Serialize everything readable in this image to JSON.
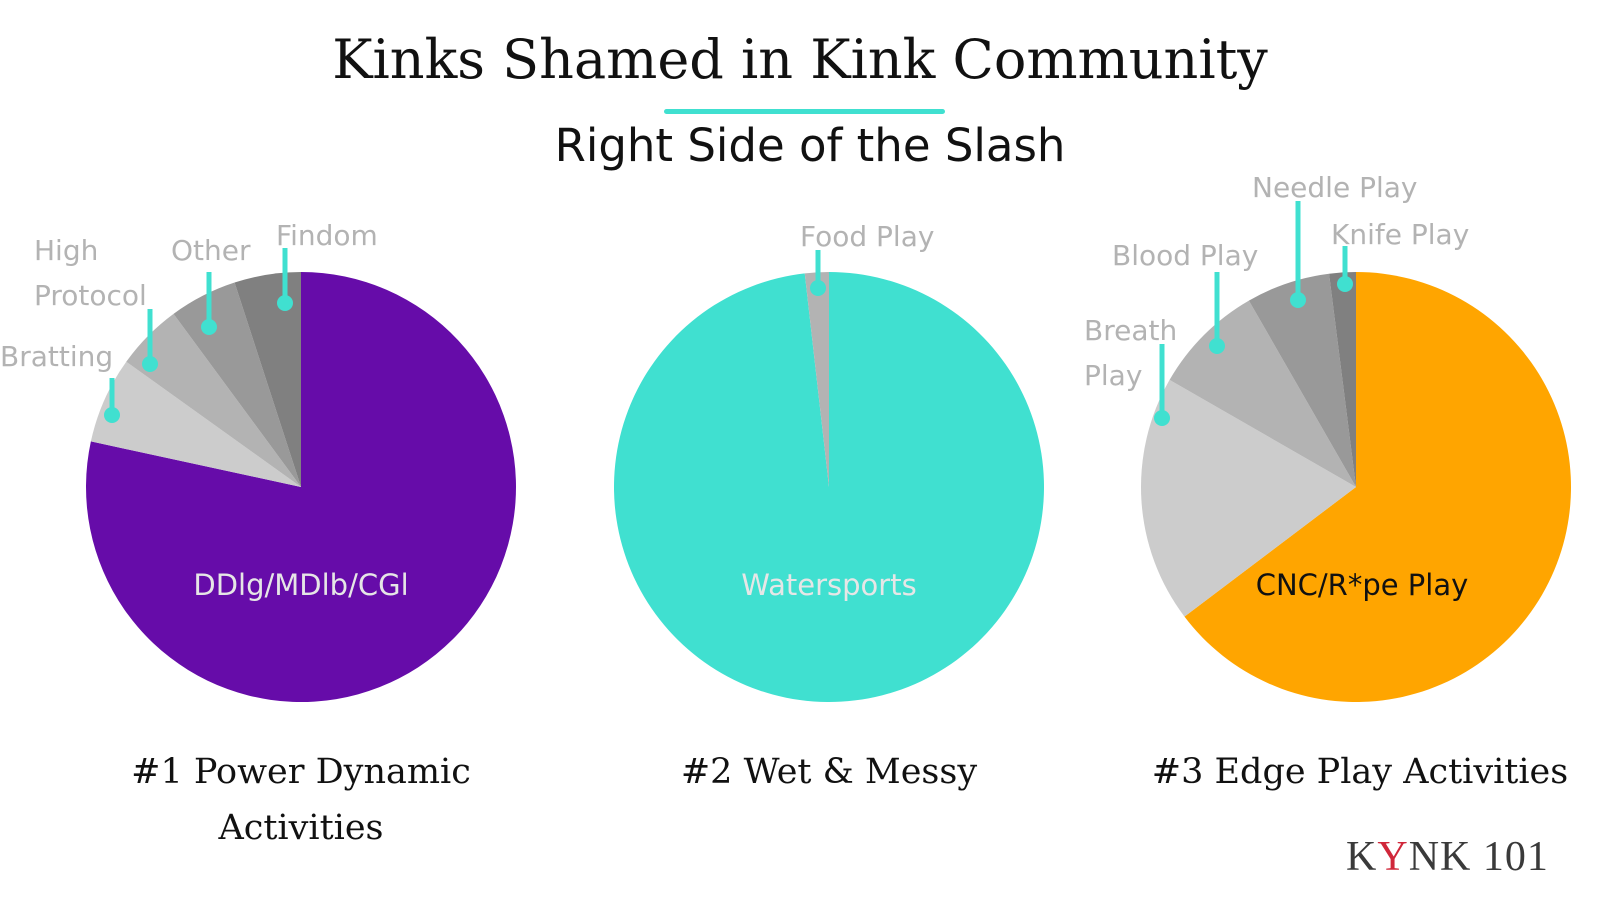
{
  "header": {
    "title": "Kinks Shamed in Kink Community",
    "subtitle": "Right Side of the Slash",
    "accent_color": "#40e0d0"
  },
  "logo": {
    "prefix": "K",
    "highlight": "Y",
    "suffix": "NK 101",
    "highlight_color": "#d0273a"
  },
  "chart_data": [
    {
      "type": "pie",
      "title": "#1 Power Dynamic Activities",
      "center": [
        301,
        487
      ],
      "radius": 215,
      "categories": [
        "DDlg/MDlb/CGl",
        "Bratting",
        "High Protocol",
        "Other",
        "Findom"
      ],
      "values": [
        78.4,
        6.5,
        5.0,
        5.1,
        5.0
      ],
      "colors": [
        "#660ca9",
        "#cccccc",
        "#b3b3b3",
        "#999999",
        "#808080"
      ],
      "label_color": [
        "#e6e6e6",
        "#b3b3b3",
        "#b3b3b3",
        "#b3b3b3",
        "#b3b3b3"
      ]
    },
    {
      "type": "pie",
      "title": "#2 Wet & Messy",
      "center": [
        829,
        487
      ],
      "radius": 215,
      "categories": [
        "Watersports",
        "Food Play"
      ],
      "values": [
        98.2,
        1.8
      ],
      "colors": [
        "#40e0d0",
        "#b3b3b3"
      ],
      "label_color": [
        "#e6e6e6",
        "#b3b3b3"
      ]
    },
    {
      "type": "pie",
      "title": "#3 Edge Play Activities",
      "center": [
        1356,
        487
      ],
      "radius": 215,
      "categories": [
        "CNC/R*pe Play",
        "Breath Play",
        "Blood Play",
        "Needle Play",
        "Knife Play"
      ],
      "values": [
        64.7,
        18.6,
        8.4,
        6.3,
        2.0
      ],
      "colors": [
        "#ffa500",
        "#cccccc",
        "#b3b3b3",
        "#999999",
        "#808080"
      ],
      "label_color": [
        "#111111",
        "#b3b3b3",
        "#b3b3b3",
        "#b3b3b3",
        "#b3b3b3"
      ]
    }
  ],
  "labels": {
    "pie1": {
      "inner": "DDlg/MDlb/CGl",
      "bratting": "Bratting",
      "high_protocol_line1": "High",
      "high_protocol_line2": "Protocol",
      "other": "Other",
      "findom": "Findom"
    },
    "pie2": {
      "inner": "Watersports",
      "food_play": "Food Play"
    },
    "pie3": {
      "inner": "CNC/R*pe Play",
      "breath_line1": "Breath",
      "breath_line2": "Play",
      "blood": "Blood Play",
      "needle": "Needle Play",
      "knife": "Knife Play"
    }
  },
  "captions": {
    "pie1_line1": "#1 Power Dynamic",
    "pie1_line2": "Activities",
    "pie2": "#2 Wet & Messy",
    "pie3": "#3 Edge Play Activities"
  }
}
